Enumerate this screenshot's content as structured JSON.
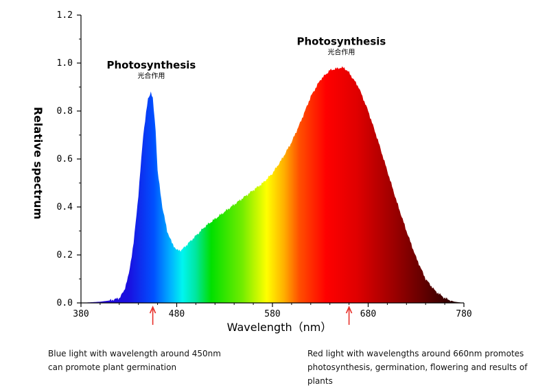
{
  "chart_data": {
    "type": "area",
    "title": "",
    "xlabel": "Wavelength（nm）",
    "ylabel": "Relative spectrum",
    "xlim": [
      380,
      780
    ],
    "ylim": [
      0,
      1.2
    ],
    "x_ticks": [
      "380",
      "480",
      "580",
      "680",
      "780"
    ],
    "y_ticks": [
      "0.0",
      "0.2",
      "0.4",
      "0.6",
      "0.8",
      "1.0",
      "1.2"
    ],
    "grid": false,
    "legend": "none",
    "series": [
      {
        "x": [
          380,
          400,
          410,
          420,
          425,
          430,
          435,
          440,
          445,
          450,
          453,
          455,
          458,
          460,
          465,
          470,
          475,
          480,
          485,
          490,
          495,
          500,
          510,
          520,
          530,
          540,
          550,
          560,
          570,
          580,
          590,
          600,
          610,
          620,
          630,
          640,
          650,
          655,
          660,
          670,
          680,
          690,
          700,
          710,
          720,
          730,
          740,
          750,
          760,
          770,
          780
        ],
        "y": [
          0.0,
          0.005,
          0.01,
          0.02,
          0.05,
          0.12,
          0.25,
          0.45,
          0.7,
          0.85,
          0.88,
          0.85,
          0.72,
          0.55,
          0.4,
          0.3,
          0.25,
          0.22,
          0.22,
          0.24,
          0.26,
          0.28,
          0.32,
          0.35,
          0.38,
          0.41,
          0.44,
          0.47,
          0.5,
          0.54,
          0.6,
          0.67,
          0.76,
          0.86,
          0.93,
          0.97,
          0.98,
          0.98,
          0.96,
          0.9,
          0.8,
          0.68,
          0.55,
          0.42,
          0.3,
          0.19,
          0.1,
          0.05,
          0.02,
          0.005,
          0.0
        ]
      }
    ],
    "annotations": [
      {
        "label": "Photosynthesis",
        "sublabel": "光合作用",
        "x": 452,
        "y": 0.88
      },
      {
        "label": "Photosynthesis",
        "sublabel": "光合作用",
        "x": 652,
        "y": 0.99
      }
    ],
    "arrows": [
      {
        "x": 455,
        "color": "#e8302a"
      },
      {
        "x": 660,
        "color": "#e8302a"
      }
    ]
  },
  "notes": {
    "blue": "Blue light with wavelength around 450nm\ncan promote plant germination",
    "red": "Red light with wavelengths around 660nm promotes\nphotosynthesis, germination, flowering and results of\nplants"
  }
}
